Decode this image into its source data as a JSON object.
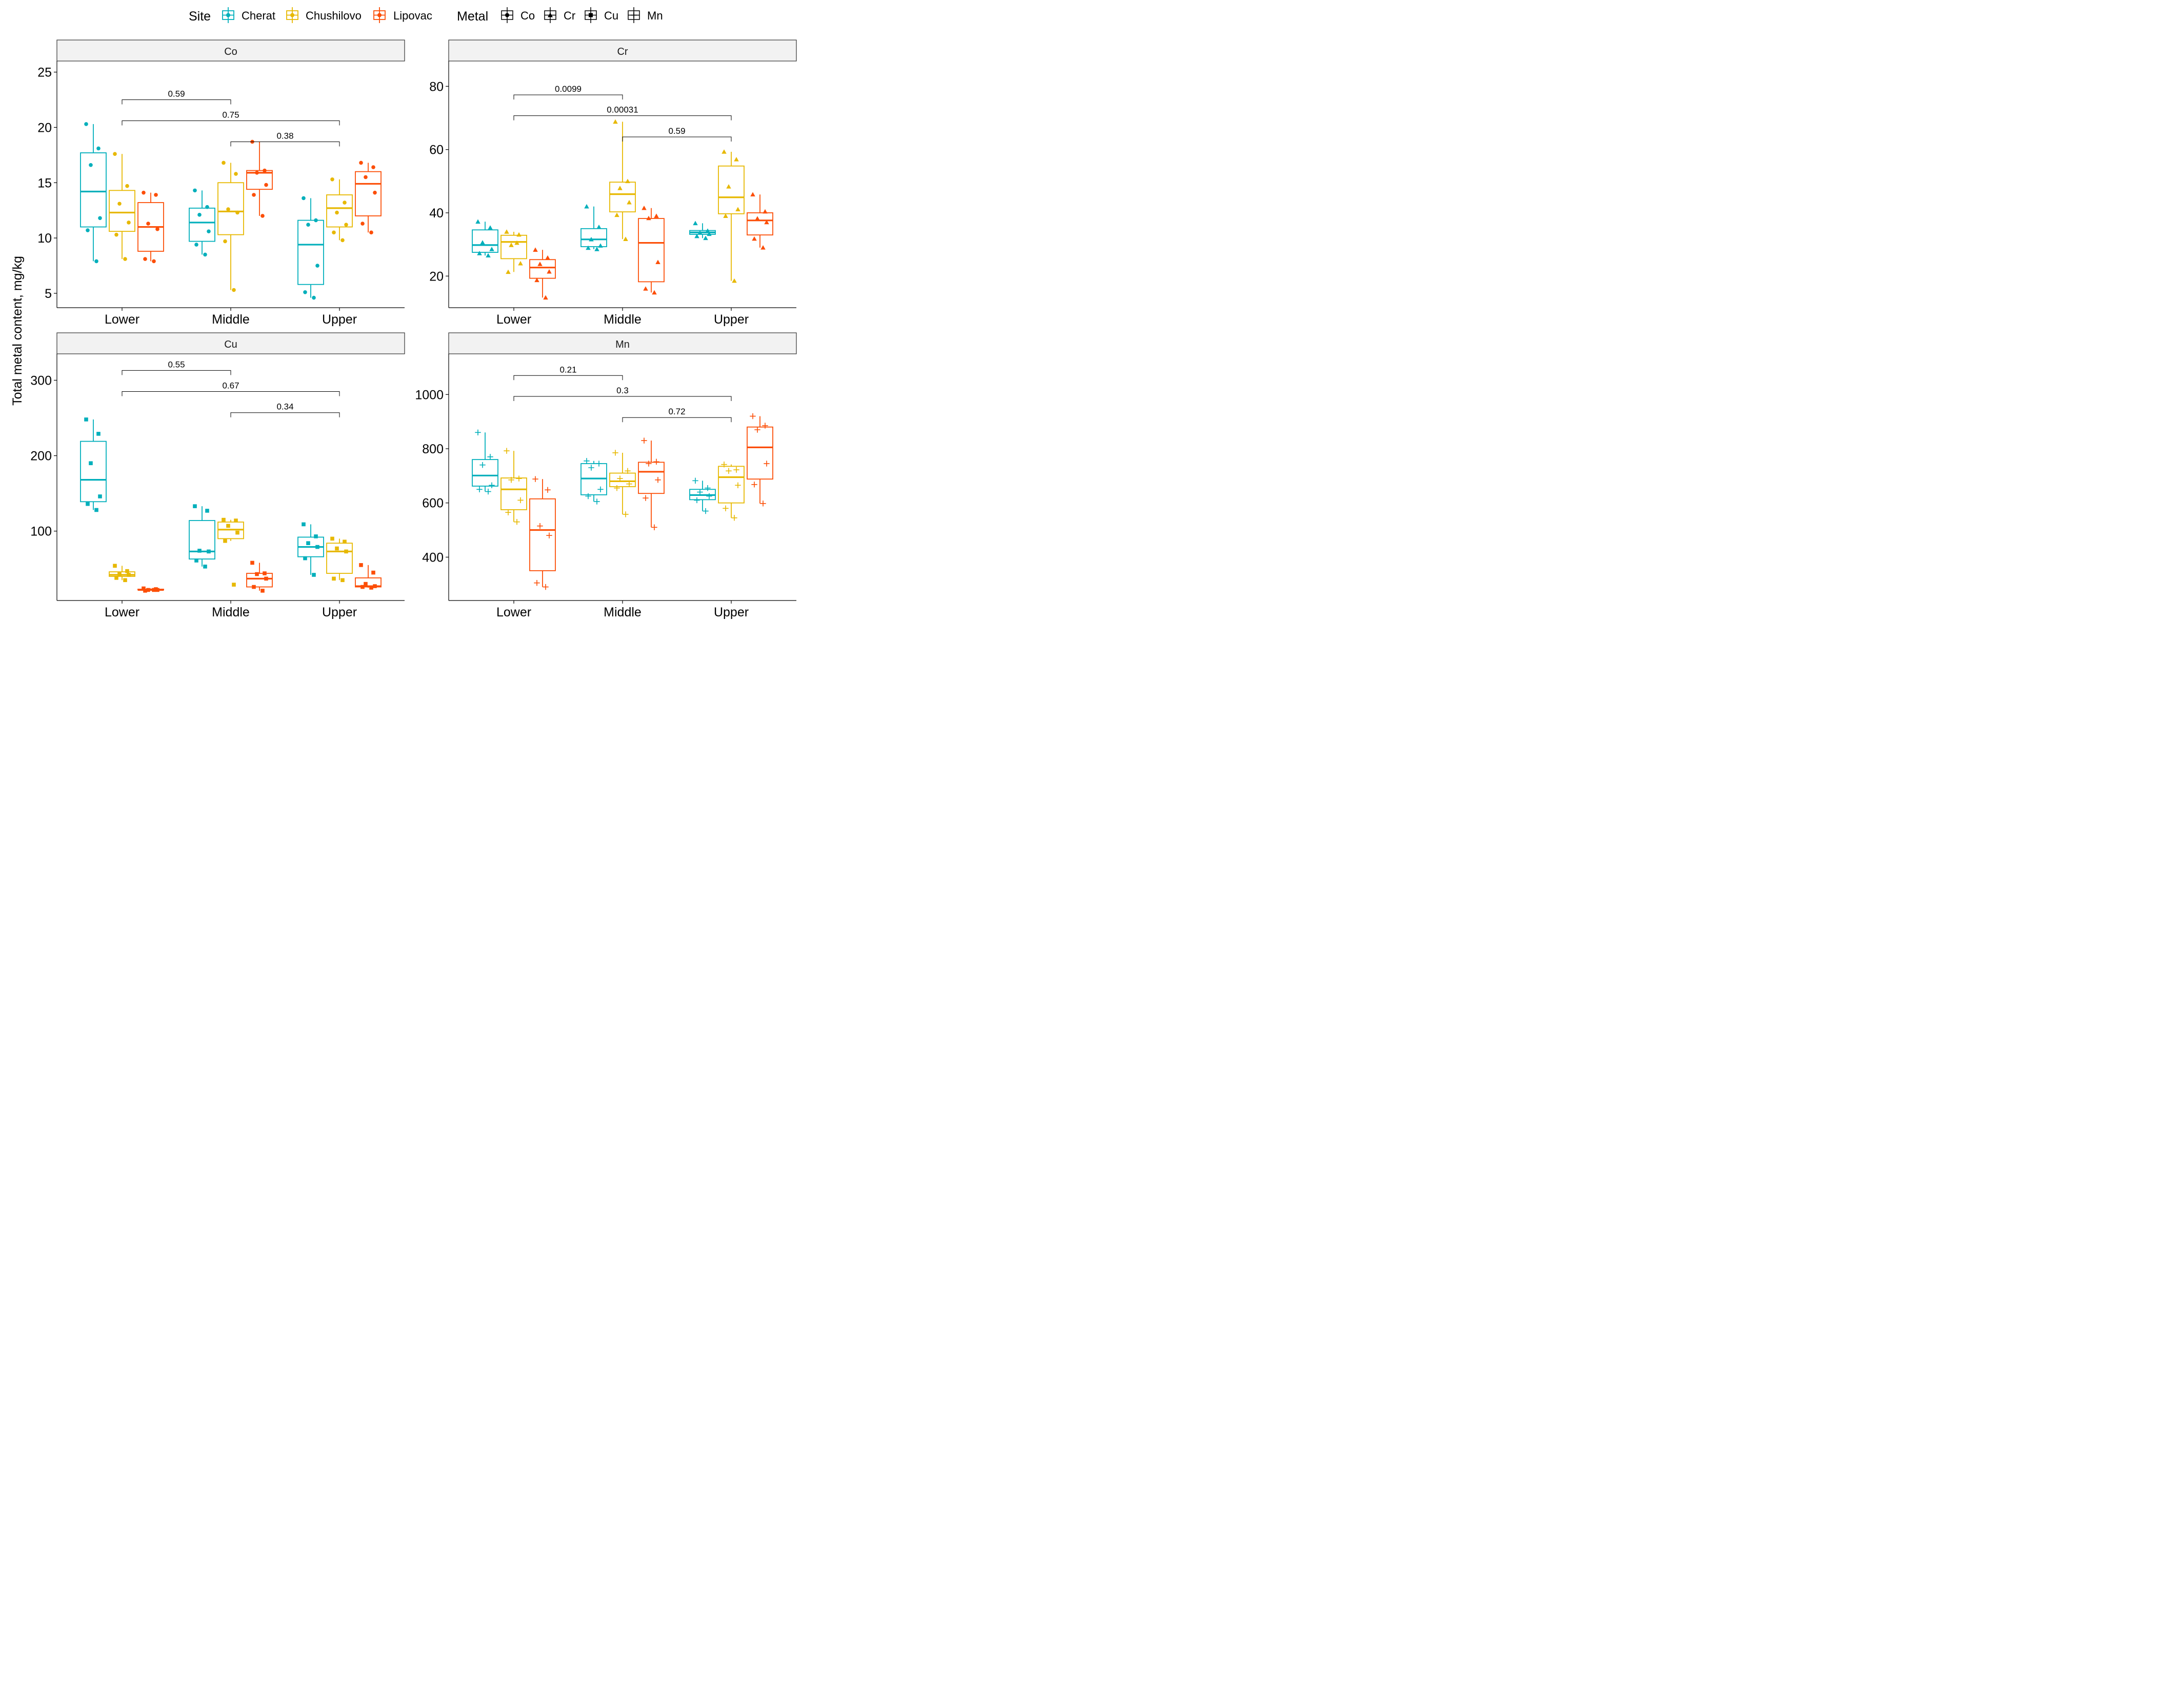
{
  "y_axis_label": "Total metal content, mg/kg",
  "legend": {
    "site_title": "Site",
    "sites": [
      {
        "name": "Cherat",
        "color": "#00AFBB"
      },
      {
        "name": "Chushilovo",
        "color": "#E7B800"
      },
      {
        "name": "Lipovac",
        "color": "#FC4E07"
      }
    ],
    "metal_title": "Metal",
    "metals": [
      {
        "name": "Co",
        "shape": "circle"
      },
      {
        "name": "Cr",
        "shape": "triangle"
      },
      {
        "name": "Cu",
        "shape": "square"
      },
      {
        "name": "Mn",
        "shape": "plus"
      }
    ]
  },
  "chart_data": [
    {
      "type": "boxplot",
      "title": "Co",
      "categories": [
        "Lower",
        "Middle",
        "Upper"
      ],
      "ylim": [
        3.7,
        26
      ],
      "yticks": [
        5,
        10,
        15,
        20,
        25
      ],
      "series": [
        {
          "name": "Cherat",
          "values": [
            {
              "q1": 11.0,
              "median": 14.2,
              "q3": 17.7,
              "lo": 7.9,
              "hi": 20.3,
              "points": [
                20.3,
                18.1,
                16.6,
                11.8,
                10.7,
                7.9
              ]
            },
            {
              "q1": 9.7,
              "median": 11.4,
              "q3": 12.7,
              "lo": 8.5,
              "hi": 14.3,
              "points": [
                14.3,
                12.8,
                12.1,
                10.6,
                9.4,
                8.5
              ]
            },
            {
              "q1": 5.8,
              "median": 9.4,
              "q3": 11.6,
              "lo": 4.6,
              "hi": 13.6,
              "points": [
                13.6,
                11.6,
                11.2,
                7.5,
                5.1,
                4.6
              ]
            }
          ]
        },
        {
          "name": "Chushilovo",
          "values": [
            {
              "q1": 10.6,
              "median": 12.3,
              "q3": 14.3,
              "lo": 8.1,
              "hi": 17.6,
              "points": [
                17.6,
                14.7,
                13.1,
                11.4,
                10.3,
                8.1
              ]
            },
            {
              "q1": 10.3,
              "median": 12.4,
              "q3": 15.0,
              "lo": 5.3,
              "hi": 16.8,
              "points": [
                16.8,
                15.8,
                12.6,
                12.3,
                9.7,
                5.3
              ]
            },
            {
              "q1": 11.0,
              "median": 12.7,
              "q3": 13.9,
              "lo": 9.8,
              "hi": 15.3,
              "points": [
                15.3,
                13.2,
                12.3,
                11.2,
                10.5,
                9.8
              ]
            }
          ]
        },
        {
          "name": "Lipovac",
          "values": [
            {
              "q1": 8.8,
              "median": 11.0,
              "q3": 13.2,
              "lo": 7.9,
              "hi": 14.1,
              "points": [
                14.1,
                13.9,
                11.3,
                10.8,
                8.1,
                7.9
              ]
            },
            {
              "q1": 14.4,
              "median": 15.9,
              "q3": 16.1,
              "lo": 12.0,
              "hi": 18.7,
              "points": [
                18.7,
                16.1,
                15.9,
                14.8,
                13.9,
                12.0
              ]
            },
            {
              "q1": 12.0,
              "median": 14.9,
              "q3": 16.0,
              "lo": 10.5,
              "hi": 16.8,
              "points": [
                16.8,
                16.4,
                15.5,
                14.1,
                11.3,
                10.5
              ]
            }
          ]
        }
      ],
      "comparisons": [
        {
          "from": "Lower",
          "to": "Middle",
          "label": "0.59",
          "y": 22.5
        },
        {
          "from": "Lower",
          "to": "Upper",
          "label": "0.75",
          "y": 20.6
        },
        {
          "from": "Middle",
          "to": "Upper",
          "label": "0.38",
          "y": 18.7
        }
      ]
    },
    {
      "type": "boxplot",
      "title": "Cr",
      "categories": [
        "Lower",
        "Middle",
        "Upper"
      ],
      "ylim": [
        10,
        88
      ],
      "yticks": [
        20,
        40,
        60,
        80
      ],
      "series": [
        {
          "name": "Cherat",
          "values": [
            {
              "q1": 27.5,
              "median": 29.8,
              "q3": 34.6,
              "lo": 26.5,
              "hi": 37.2,
              "points": [
                37.2,
                35.3,
                30.6,
                28.5,
                27.2,
                26.5
              ]
            },
            {
              "q1": 29.3,
              "median": 31.6,
              "q3": 35.0,
              "lo": 28.5,
              "hi": 42.0,
              "points": [
                42.0,
                35.5,
                31.6,
                29.6,
                28.9,
                28.5
              ]
            },
            {
              "q1": 33.2,
              "median": 33.8,
              "q3": 34.4,
              "lo": 32.0,
              "hi": 36.7,
              "points": [
                36.7,
                34.3,
                33.7,
                33.3,
                32.6,
                32.0
              ]
            }
          ]
        },
        {
          "name": "Chushilovo",
          "values": [
            {
              "q1": 25.5,
              "median": 30.8,
              "q3": 32.9,
              "lo": 21.3,
              "hi": 34.0,
              "points": [
                34.0,
                33.1,
                29.8,
                24.0,
                21.3,
                30.5
              ]
            },
            {
              "q1": 40.3,
              "median": 45.9,
              "q3": 49.7,
              "lo": 31.7,
              "hi": 68.8,
              "points": [
                68.8,
                50.0,
                47.8,
                43.3,
                39.3,
                31.7
              ]
            },
            {
              "q1": 39.7,
              "median": 44.9,
              "q3": 54.8,
              "lo": 18.5,
              "hi": 59.3,
              "points": [
                59.3,
                56.9,
                48.3,
                41.1,
                39.0,
                18.5
              ]
            }
          ]
        },
        {
          "name": "Lipovac",
          "values": [
            {
              "q1": 19.3,
              "median": 22.7,
              "q3": 25.2,
              "lo": 13.2,
              "hi": 28.3,
              "points": [
                28.3,
                25.8,
                23.8,
                21.4,
                18.7,
                13.2
              ]
            },
            {
              "q1": 18.2,
              "median": 30.5,
              "q3": 38.2,
              "lo": 14.8,
              "hi": 41.5,
              "points": [
                41.5,
                39.0,
                38.3,
                24.4,
                16.0,
                14.8
              ]
            },
            {
              "q1": 33.0,
              "median": 37.6,
              "q3": 40.0,
              "lo": 29.0,
              "hi": 45.8,
              "points": [
                45.8,
                40.4,
                38.2,
                37.0,
                31.8,
                29.0
              ]
            }
          ]
        }
      ],
      "comparisons": [
        {
          "from": "Lower",
          "to": "Middle",
          "label": "0.0099",
          "y": 77.3
        },
        {
          "from": "Lower",
          "to": "Upper",
          "label": "0.00031",
          "y": 70.7
        },
        {
          "from": "Middle",
          "to": "Upper",
          "label": "0.59",
          "y": 64.0
        }
      ]
    },
    {
      "type": "boxplot",
      "title": "Cu",
      "categories": [
        "Lower",
        "Middle",
        "Upper"
      ],
      "ylim": [
        8,
        335
      ],
      "yticks": [
        100,
        200,
        300
      ],
      "series": [
        {
          "name": "Cherat",
          "values": [
            {
              "q1": 139,
              "median": 168,
              "q3": 219,
              "lo": 128,
              "hi": 248,
              "points": [
                248,
                229,
                190,
                146,
                136,
                128
              ]
            },
            {
              "q1": 63,
              "median": 73,
              "q3": 114,
              "lo": 53,
              "hi": 133,
              "points": [
                133,
                127,
                74,
                73,
                61,
                53
              ]
            },
            {
              "q1": 66,
              "median": 79,
              "q3": 92,
              "lo": 42,
              "hi": 109,
              "points": [
                109,
                93,
                84,
                79,
                64,
                42
              ]
            }
          ]
        },
        {
          "name": "Chushilovo",
          "values": [
            {
              "q1": 40,
              "median": 42,
              "q3": 46,
              "lo": 35,
              "hi": 54,
              "points": [
                54,
                47,
                43,
                42,
                38,
                35
              ]
            },
            {
              "q1": 90,
              "median": 102,
              "q3": 112,
              "lo": 87,
              "hi": 115,
              "points": [
                115,
                114,
                107,
                98,
                87,
                29
              ]
            },
            {
              "q1": 44,
              "median": 73,
              "q3": 84,
              "lo": 35,
              "hi": 90,
              "points": [
                90,
                86,
                77,
                73,
                37,
                35
              ]
            }
          ]
        },
        {
          "name": "Lipovac",
          "values": [
            {
              "q1": 22,
              "median": 22,
              "q3": 23,
              "lo": 21,
              "hi": 24,
              "points": [
                24,
                23,
                22,
                22,
                21,
                22
              ]
            },
            {
              "q1": 26,
              "median": 37,
              "q3": 44,
              "lo": 21,
              "hi": 58,
              "points": [
                58,
                44,
                43,
                37,
                26,
                21
              ]
            },
            {
              "q1": 26,
              "median": 27,
              "q3": 38,
              "lo": 25,
              "hi": 55,
              "points": [
                55,
                45,
                30,
                27,
                26,
                25
              ]
            }
          ]
        }
      ],
      "comparisons": [
        {
          "from": "Lower",
          "to": "Middle",
          "label": "0.55",
          "y": 313
        },
        {
          "from": "Lower",
          "to": "Upper",
          "label": "0.67",
          "y": 285
        },
        {
          "from": "Middle",
          "to": "Upper",
          "label": "0.34",
          "y": 257
        }
      ]
    },
    {
      "type": "boxplot",
      "title": "Mn",
      "categories": [
        "Lower",
        "Middle",
        "Upper"
      ],
      "ylim": [
        240,
        1150
      ],
      "yticks": [
        400,
        600,
        800,
        1000
      ],
      "series": [
        {
          "name": "Cherat",
          "values": [
            {
              "q1": 662,
              "median": 701,
              "q3": 760,
              "lo": 642,
              "hi": 860,
              "points": [
                860,
                770,
                740,
                665,
                650,
                642
              ]
            },
            {
              "q1": 630,
              "median": 690,
              "q3": 745,
              "lo": 605,
              "hi": 755,
              "points": [
                755,
                745,
                730,
                650,
                625,
                605
              ]
            },
            {
              "q1": 612,
              "median": 629,
              "q3": 650,
              "lo": 570,
              "hi": 682,
              "points": [
                682,
                655,
                640,
                625,
                610,
                570
              ]
            }
          ]
        },
        {
          "name": "Chushilovo",
          "values": [
            {
              "q1": 575,
              "median": 650,
              "q3": 692,
              "lo": 530,
              "hi": 792,
              "points": [
                792,
                690,
                685,
                610,
                565,
                530
              ]
            },
            {
              "q1": 660,
              "median": 680,
              "q3": 710,
              "lo": 558,
              "hi": 785,
              "points": [
                785,
                718,
                690,
                670,
                655,
                558
              ]
            },
            {
              "q1": 600,
              "median": 695,
              "q3": 735,
              "lo": 545,
              "hi": 742,
              "points": [
                742,
                722,
                718,
                665,
                580,
                545
              ]
            }
          ]
        },
        {
          "name": "Lipovac",
          "values": [
            {
              "q1": 350,
              "median": 500,
              "q3": 615,
              "lo": 290,
              "hi": 688,
              "points": [
                688,
                648,
                515,
                480,
                305,
                290
              ]
            },
            {
              "q1": 635,
              "median": 715,
              "q3": 750,
              "lo": 510,
              "hi": 830,
              "points": [
                830,
                752,
                745,
                685,
                618,
                510
              ]
            },
            {
              "q1": 688,
              "median": 805,
              "q3": 880,
              "lo": 598,
              "hi": 920,
              "points": [
                920,
                885,
                870,
                745,
                668,
                598
              ]
            }
          ]
        }
      ],
      "comparisons": [
        {
          "from": "Lower",
          "to": "Middle",
          "label": "0.21",
          "y": 1070
        },
        {
          "from": "Lower",
          "to": "Upper",
          "label": "0.3",
          "y": 993
        },
        {
          "from": "Middle",
          "to": "Upper",
          "label": "0.72",
          "y": 915
        }
      ]
    }
  ]
}
